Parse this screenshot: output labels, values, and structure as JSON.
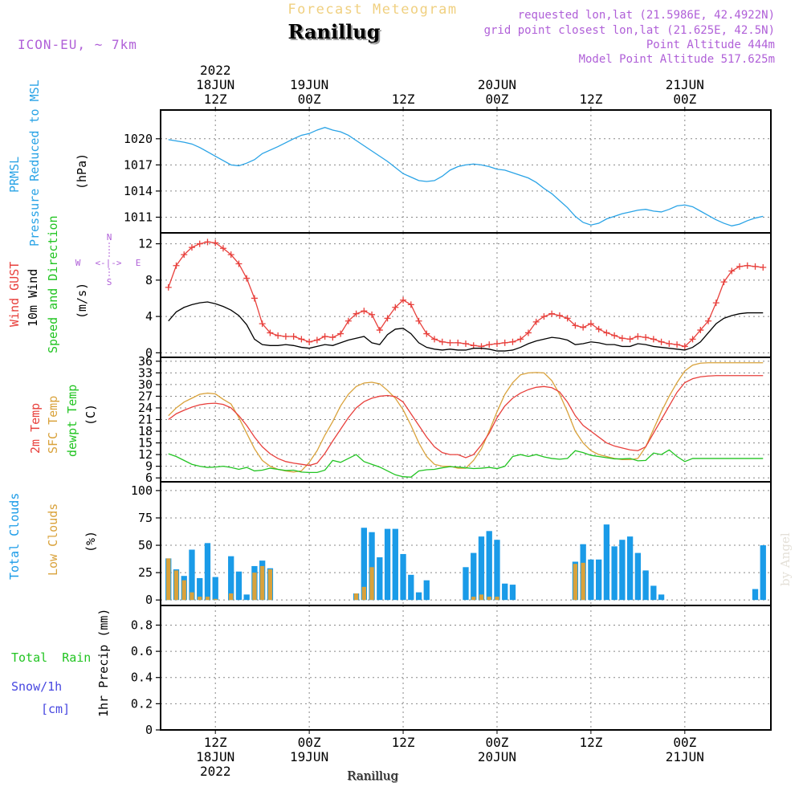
{
  "header": {
    "product_title": "Forecast Meteogram",
    "location": "Ranillug",
    "model": "ICON-EU, ~ 7km",
    "requested": "requested lon,lat (21.5986E, 42.4922N)",
    "grid_point": "grid point closest lon,lat (21.625E, 42.5N)",
    "point_altitude": "Point Altitude 444m",
    "model_altitude": "Model Point Altitude 517.625m",
    "footer_location": "Ranillug",
    "watermark": "by Angel"
  },
  "colors": {
    "pressure": "#29a3e6",
    "gust": "#e8403c",
    "wind10m": "#000000",
    "t2m": "#e8403c",
    "tsfc": "#d9a23b",
    "dewpt": "#22c422",
    "total_clouds": "#1a9be8",
    "low_clouds": "#d9a23b",
    "rain_label": "#22c422",
    "snow_label": "#4646e0",
    "purple": "#b060d8"
  },
  "time_axis": {
    "top_labels": [
      {
        "h": 12,
        "lines": [
          "2022",
          "18JUN",
          "12Z"
        ]
      },
      {
        "h": 24,
        "lines": [
          "19JUN",
          "00Z"
        ]
      },
      {
        "h": 36,
        "lines": [
          "12Z"
        ]
      },
      {
        "h": 48,
        "lines": [
          "20JUN",
          "00Z"
        ]
      },
      {
        "h": 60,
        "lines": [
          "12Z"
        ]
      },
      {
        "h": 72,
        "lines": [
          "21JUN",
          "00Z"
        ]
      }
    ],
    "bottom_labels": [
      {
        "h": 12,
        "lines": [
          "12Z",
          "18JUN",
          "2022"
        ]
      },
      {
        "h": 24,
        "lines": [
          "00Z",
          "19JUN"
        ]
      },
      {
        "h": 36,
        "lines": [
          "12Z"
        ]
      },
      {
        "h": 48,
        "lines": [
          "00Z",
          "20JUN"
        ]
      },
      {
        "h": 60,
        "lines": [
          "12Z"
        ]
      },
      {
        "h": 72,
        "lines": [
          "00Z",
          "21JUN"
        ]
      }
    ]
  },
  "panels": {
    "pressure": {
      "label1": "PRMSL",
      "label2": "Pressure Reduced to MSL",
      "unit": "(hPa)"
    },
    "wind": {
      "label_gust": "Wind GUST",
      "label_10m": "10m Wind",
      "label_dir": "Speed and Direction",
      "unit": "(m/s)",
      "compass_n": "N",
      "compass_s": "S",
      "compass_w": "W",
      "compass_e": "E",
      "compass_arrows": "<-|->"
    },
    "temp": {
      "label_t2m": "2m Temp",
      "label_sfc": "SFC Temp",
      "label_dew": "dewpt Temp",
      "unit": "(C)"
    },
    "clouds": {
      "label_total": "Total Clouds",
      "label_low": "Low Clouds",
      "unit": "(%)"
    },
    "precip": {
      "label_rain": "Total  Rain",
      "label_snow": "Snow/1h",
      "label_cm": "[cm]",
      "axis_label": "1hr Precip (mm)"
    }
  },
  "chart_data": [
    {
      "type": "line",
      "title": "PRMSL Pressure Reduced to MSL",
      "ylabel": "(hPa)",
      "ylim": [
        1009.2,
        1023.3
      ],
      "yticks": [
        1011,
        1014,
        1017,
        1020
      ],
      "x_hours": [
        6,
        8,
        9,
        10,
        11,
        12,
        13,
        14,
        15,
        16,
        17,
        18,
        20,
        22,
        23,
        24,
        25,
        26,
        27,
        28,
        29,
        30,
        32,
        34,
        36,
        38,
        39,
        40,
        41,
        42,
        43,
        44,
        45,
        46,
        47,
        48,
        49,
        50,
        51,
        52,
        53,
        54,
        55,
        56,
        57,
        58,
        59,
        60,
        61,
        62,
        63,
        64,
        65,
        66,
        67,
        68,
        69,
        70,
        71,
        72,
        73,
        74,
        75,
        76,
        77,
        78,
        79,
        80,
        81,
        82
      ],
      "series": [
        {
          "name": "PRMSL",
          "values": [
            1019.9,
            1019.6,
            1019.4,
            1019.0,
            1018.5,
            1018.0,
            1017.5,
            1017.0,
            1016.9,
            1017.2,
            1017.6,
            1018.3,
            1019.1,
            1020.0,
            1020.4,
            1020.6,
            1021.0,
            1021.3,
            1021.0,
            1020.8,
            1020.4,
            1019.8,
            1018.6,
            1017.4,
            1016.0,
            1015.2,
            1015.1,
            1015.2,
            1015.7,
            1016.4,
            1016.8,
            1017.0,
            1017.1,
            1017.0,
            1016.8,
            1016.5,
            1016.4,
            1016.1,
            1015.8,
            1015.5,
            1015.0,
            1014.3,
            1013.7,
            1012.9,
            1012.1,
            1011.1,
            1010.4,
            1010.1,
            1010.3,
            1010.8,
            1011.1,
            1011.4,
            1011.6,
            1011.8,
            1011.9,
            1011.7,
            1011.6,
            1011.9,
            1012.3,
            1012.4,
            1012.2,
            1011.7,
            1011.2,
            1010.7,
            1010.3,
            1010.0,
            1010.2,
            1010.6,
            1010.9,
            1011.1
          ]
        }
      ]
    },
    {
      "type": "line",
      "title": "Wind GUST / 10m Wind Speed and Direction",
      "ylabel": "(m/s)",
      "ylim": [
        -0.5,
        13.2
      ],
      "yticks": [
        0,
        4,
        8,
        12
      ],
      "x_hours": [
        6,
        7,
        8,
        9,
        10,
        11,
        12,
        13,
        14,
        15,
        16,
        17,
        18,
        19,
        20,
        21,
        22,
        23,
        24,
        25,
        26,
        27,
        28,
        29,
        30,
        31,
        32,
        33,
        34,
        35,
        36,
        37,
        38,
        39,
        40,
        41,
        42,
        43,
        44,
        45,
        46,
        47,
        48,
        49,
        50,
        51,
        52,
        53,
        54,
        55,
        56,
        57,
        58,
        59,
        60,
        61,
        62,
        63,
        64,
        65,
        66,
        67,
        68,
        69,
        70,
        71,
        72,
        73,
        74,
        75,
        76,
        77,
        78,
        79,
        80,
        81,
        82
      ],
      "series": [
        {
          "name": "Wind GUST",
          "values": [
            7.2,
            9.6,
            10.8,
            11.6,
            12.0,
            12.2,
            12.1,
            11.5,
            10.8,
            9.8,
            8.2,
            6.0,
            3.2,
            2.2,
            1.9,
            1.8,
            1.8,
            1.5,
            1.2,
            1.4,
            1.8,
            1.7,
            2.1,
            3.5,
            4.3,
            4.6,
            4.2,
            2.5,
            3.8,
            5.0,
            5.8,
            5.3,
            3.5,
            2.1,
            1.5,
            1.2,
            1.1,
            1.1,
            1.0,
            0.8,
            0.7,
            0.9,
            1.0,
            1.1,
            1.2,
            1.5,
            2.2,
            3.4,
            4.0,
            4.3,
            4.1,
            3.8,
            3.0,
            2.8,
            3.2,
            2.6,
            2.2,
            1.9,
            1.6,
            1.5,
            1.8,
            1.7,
            1.5,
            1.2,
            1.0,
            0.9,
            0.7,
            1.5,
            2.5,
            3.5,
            5.5,
            7.8,
            9.0,
            9.5,
            9.6,
            9.5,
            9.4
          ]
        },
        {
          "name": "10m Wind",
          "values": [
            3.5,
            4.5,
            5.0,
            5.3,
            5.5,
            5.6,
            5.4,
            5.1,
            4.7,
            4.1,
            3.1,
            1.5,
            0.9,
            0.8,
            0.8,
            0.9,
            0.8,
            0.6,
            0.5,
            0.7,
            0.9,
            0.8,
            1.1,
            1.4,
            1.6,
            1.8,
            1.1,
            0.9,
            2.0,
            2.6,
            2.7,
            2.1,
            1.1,
            0.6,
            0.4,
            0.3,
            0.4,
            0.3,
            0.3,
            0.5,
            0.5,
            0.4,
            0.2,
            0.2,
            0.3,
            0.6,
            1.0,
            1.3,
            1.5,
            1.7,
            1.6,
            1.4,
            0.9,
            1.0,
            1.2,
            1.1,
            0.9,
            0.9,
            0.7,
            0.7,
            1.0,
            0.9,
            0.7,
            0.6,
            0.5,
            0.4,
            0.3,
            0.6,
            1.2,
            2.2,
            3.2,
            3.8,
            4.1,
            4.3,
            4.4,
            4.4,
            4.4
          ]
        }
      ]
    },
    {
      "type": "line",
      "title": "2m Temp / SFC Temp / dewpt Temp",
      "ylabel": "(C)",
      "ylim": [
        5,
        37
      ],
      "yticks": [
        6,
        9,
        12,
        15,
        18,
        21,
        24,
        27,
        30,
        33,
        36
      ],
      "x_hours": [
        6,
        7,
        8,
        9,
        10,
        11,
        12,
        13,
        14,
        15,
        16,
        17,
        18,
        19,
        20,
        21,
        22,
        23,
        24,
        25,
        26,
        27,
        28,
        29,
        30,
        31,
        32,
        33,
        34,
        35,
        36,
        37,
        38,
        39,
        40,
        41,
        42,
        43,
        44,
        45,
        46,
        47,
        48,
        49,
        50,
        51,
        52,
        53,
        54,
        55,
        56,
        57,
        58,
        59,
        60,
        61,
        62,
        63,
        64,
        65,
        66,
        67,
        68,
        69,
        70,
        71,
        72,
        73,
        74,
        75,
        76,
        77,
        78,
        79,
        80,
        81,
        82
      ],
      "series": [
        {
          "name": "2m Temp",
          "values": [
            21.0,
            22.5,
            23.4,
            24.2,
            24.8,
            25.1,
            25.2,
            24.9,
            24.0,
            22.0,
            19.5,
            16.5,
            14.0,
            12.2,
            11.0,
            10.2,
            9.8,
            9.5,
            9.2,
            9.8,
            12.3,
            15.5,
            18.5,
            21.5,
            24.0,
            25.6,
            26.5,
            27.0,
            27.2,
            26.9,
            25.5,
            22.5,
            19.5,
            16.5,
            14.0,
            12.5,
            12.0,
            12.0,
            11.2,
            12.0,
            14.5,
            17.5,
            21.5,
            24.5,
            26.5,
            27.8,
            28.7,
            29.3,
            29.5,
            29.2,
            28.1,
            25.5,
            22.0,
            19.5,
            18.0,
            16.5,
            15.0,
            14.2,
            13.7,
            13.2,
            13.0,
            14.0,
            17.5,
            21.0,
            24.5,
            28.0,
            30.5,
            31.5,
            32.0,
            32.2,
            32.3,
            32.3,
            32.3,
            32.3,
            32.3,
            32.3,
            32.3
          ]
        },
        {
          "name": "SFC Temp",
          "values": [
            22.0,
            24.0,
            25.5,
            26.5,
            27.5,
            27.8,
            27.6,
            26.2,
            25.0,
            21.5,
            17.5,
            13.5,
            10.5,
            9.0,
            8.2,
            7.8,
            7.5,
            7.8,
            10.0,
            13.0,
            17.0,
            20.5,
            24.5,
            27.5,
            29.5,
            30.4,
            30.6,
            30.2,
            28.5,
            26.5,
            23.5,
            19.5,
            15.0,
            11.5,
            9.5,
            9.0,
            9.0,
            8.5,
            8.5,
            10.5,
            13.5,
            18.0,
            23.0,
            27.5,
            30.5,
            32.5,
            33.0,
            33.1,
            33.0,
            31.0,
            27.5,
            23.0,
            18.0,
            15.0,
            13.0,
            12.0,
            11.5,
            11.0,
            10.7,
            10.7,
            11.0,
            14.0,
            18.5,
            23.0,
            27.0,
            30.5,
            33.5,
            35.0,
            35.5,
            35.6,
            35.6,
            35.6,
            35.6,
            35.6,
            35.6,
            35.6,
            35.6
          ]
        },
        {
          "name": "dewpt Temp",
          "values": [
            12.2,
            11.5,
            10.5,
            9.5,
            9.0,
            8.7,
            8.8,
            9.0,
            8.7,
            8.2,
            8.7,
            7.8,
            8.0,
            8.5,
            8.2,
            7.9,
            8.0,
            7.5,
            7.4,
            7.4,
            8.0,
            10.5,
            10.0,
            11.0,
            12.0,
            10.2,
            9.5,
            8.8,
            7.8,
            6.8,
            6.3,
            6.2,
            7.8,
            8.1,
            8.2,
            8.6,
            8.9,
            8.8,
            8.6,
            8.4,
            8.5,
            8.7,
            8.4,
            9.0,
            11.5,
            12.0,
            11.5,
            12.0,
            11.4,
            11.0,
            10.8,
            11.0,
            13.0,
            12.5,
            11.8,
            11.5,
            11.2,
            10.9,
            10.9,
            11.0,
            10.4,
            10.5,
            12.4,
            12.0,
            13.2,
            11.5,
            10.2,
            11.0,
            11.0,
            11.0,
            11.0,
            11.0,
            11.0,
            11.0,
            11.0,
            11.0,
            11.0
          ]
        }
      ]
    },
    {
      "type": "bar",
      "title": "Total Clouds / Low Clouds",
      "ylabel": "(%)",
      "ylim": [
        -5,
        108
      ],
      "yticks": [
        0,
        25,
        50,
        75,
        100
      ],
      "x_hours": [
        6,
        7,
        8,
        9,
        10,
        11,
        12,
        13,
        14,
        15,
        16,
        17,
        18,
        19,
        20,
        21,
        22,
        23,
        24,
        25,
        26,
        27,
        28,
        29,
        30,
        31,
        32,
        33,
        34,
        35,
        36,
        37,
        38,
        39,
        40,
        41,
        42,
        43,
        44,
        45,
        46,
        47,
        48,
        49,
        50,
        51,
        52,
        53,
        54,
        55,
        56,
        57,
        58,
        59,
        60,
        61,
        62,
        63,
        64,
        65,
        66,
        67,
        68,
        69,
        70,
        71,
        72,
        73,
        74,
        75,
        76,
        77,
        78,
        79,
        80,
        81,
        82
      ],
      "series": [
        {
          "name": "Total Clouds",
          "values": [
            38,
            28,
            22,
            46,
            20,
            52,
            21,
            0,
            40,
            26,
            5,
            31,
            36,
            29,
            0,
            0,
            0,
            0,
            0,
            0,
            0,
            0,
            0,
            0,
            6,
            66,
            62,
            39,
            65,
            65,
            42,
            23,
            7,
            18,
            0,
            0,
            0,
            0,
            30,
            43,
            58,
            63,
            55,
            15,
            14,
            0,
            0,
            0,
            0,
            0,
            0,
            0,
            35,
            51,
            37,
            37,
            69,
            49,
            55,
            58,
            43,
            27,
            13,
            5,
            0,
            0,
            0,
            0,
            0,
            0,
            0,
            0,
            0,
            0,
            0,
            10,
            50
          ]
        },
        {
          "name": "Low Clouds",
          "values": [
            38,
            27,
            18,
            7,
            3,
            3,
            1,
            0,
            6,
            0,
            0,
            25,
            31,
            28,
            0,
            0,
            0,
            0,
            0,
            0,
            0,
            0,
            0,
            0,
            6,
            12,
            30,
            0,
            0,
            0,
            0,
            0,
            0,
            0,
            0,
            0,
            0,
            0,
            0,
            3,
            5,
            3,
            3,
            0,
            0,
            0,
            0,
            0,
            0,
            0,
            0,
            0,
            33,
            34,
            0,
            0,
            0,
            0,
            0,
            0,
            0,
            0,
            0,
            0,
            0,
            0,
            0,
            0,
            0,
            0,
            0,
            0,
            0,
            0,
            0,
            0,
            0
          ]
        }
      ]
    },
    {
      "type": "bar",
      "title": "1hr Precip (mm)",
      "ylabel": "1hr Precip (mm)",
      "ylim": [
        0,
        0.95
      ],
      "yticks": [
        0,
        0.2,
        0.4,
        0.6,
        0.8
      ],
      "series": [
        {
          "name": "Total Rain",
          "values": []
        }
      ]
    }
  ]
}
